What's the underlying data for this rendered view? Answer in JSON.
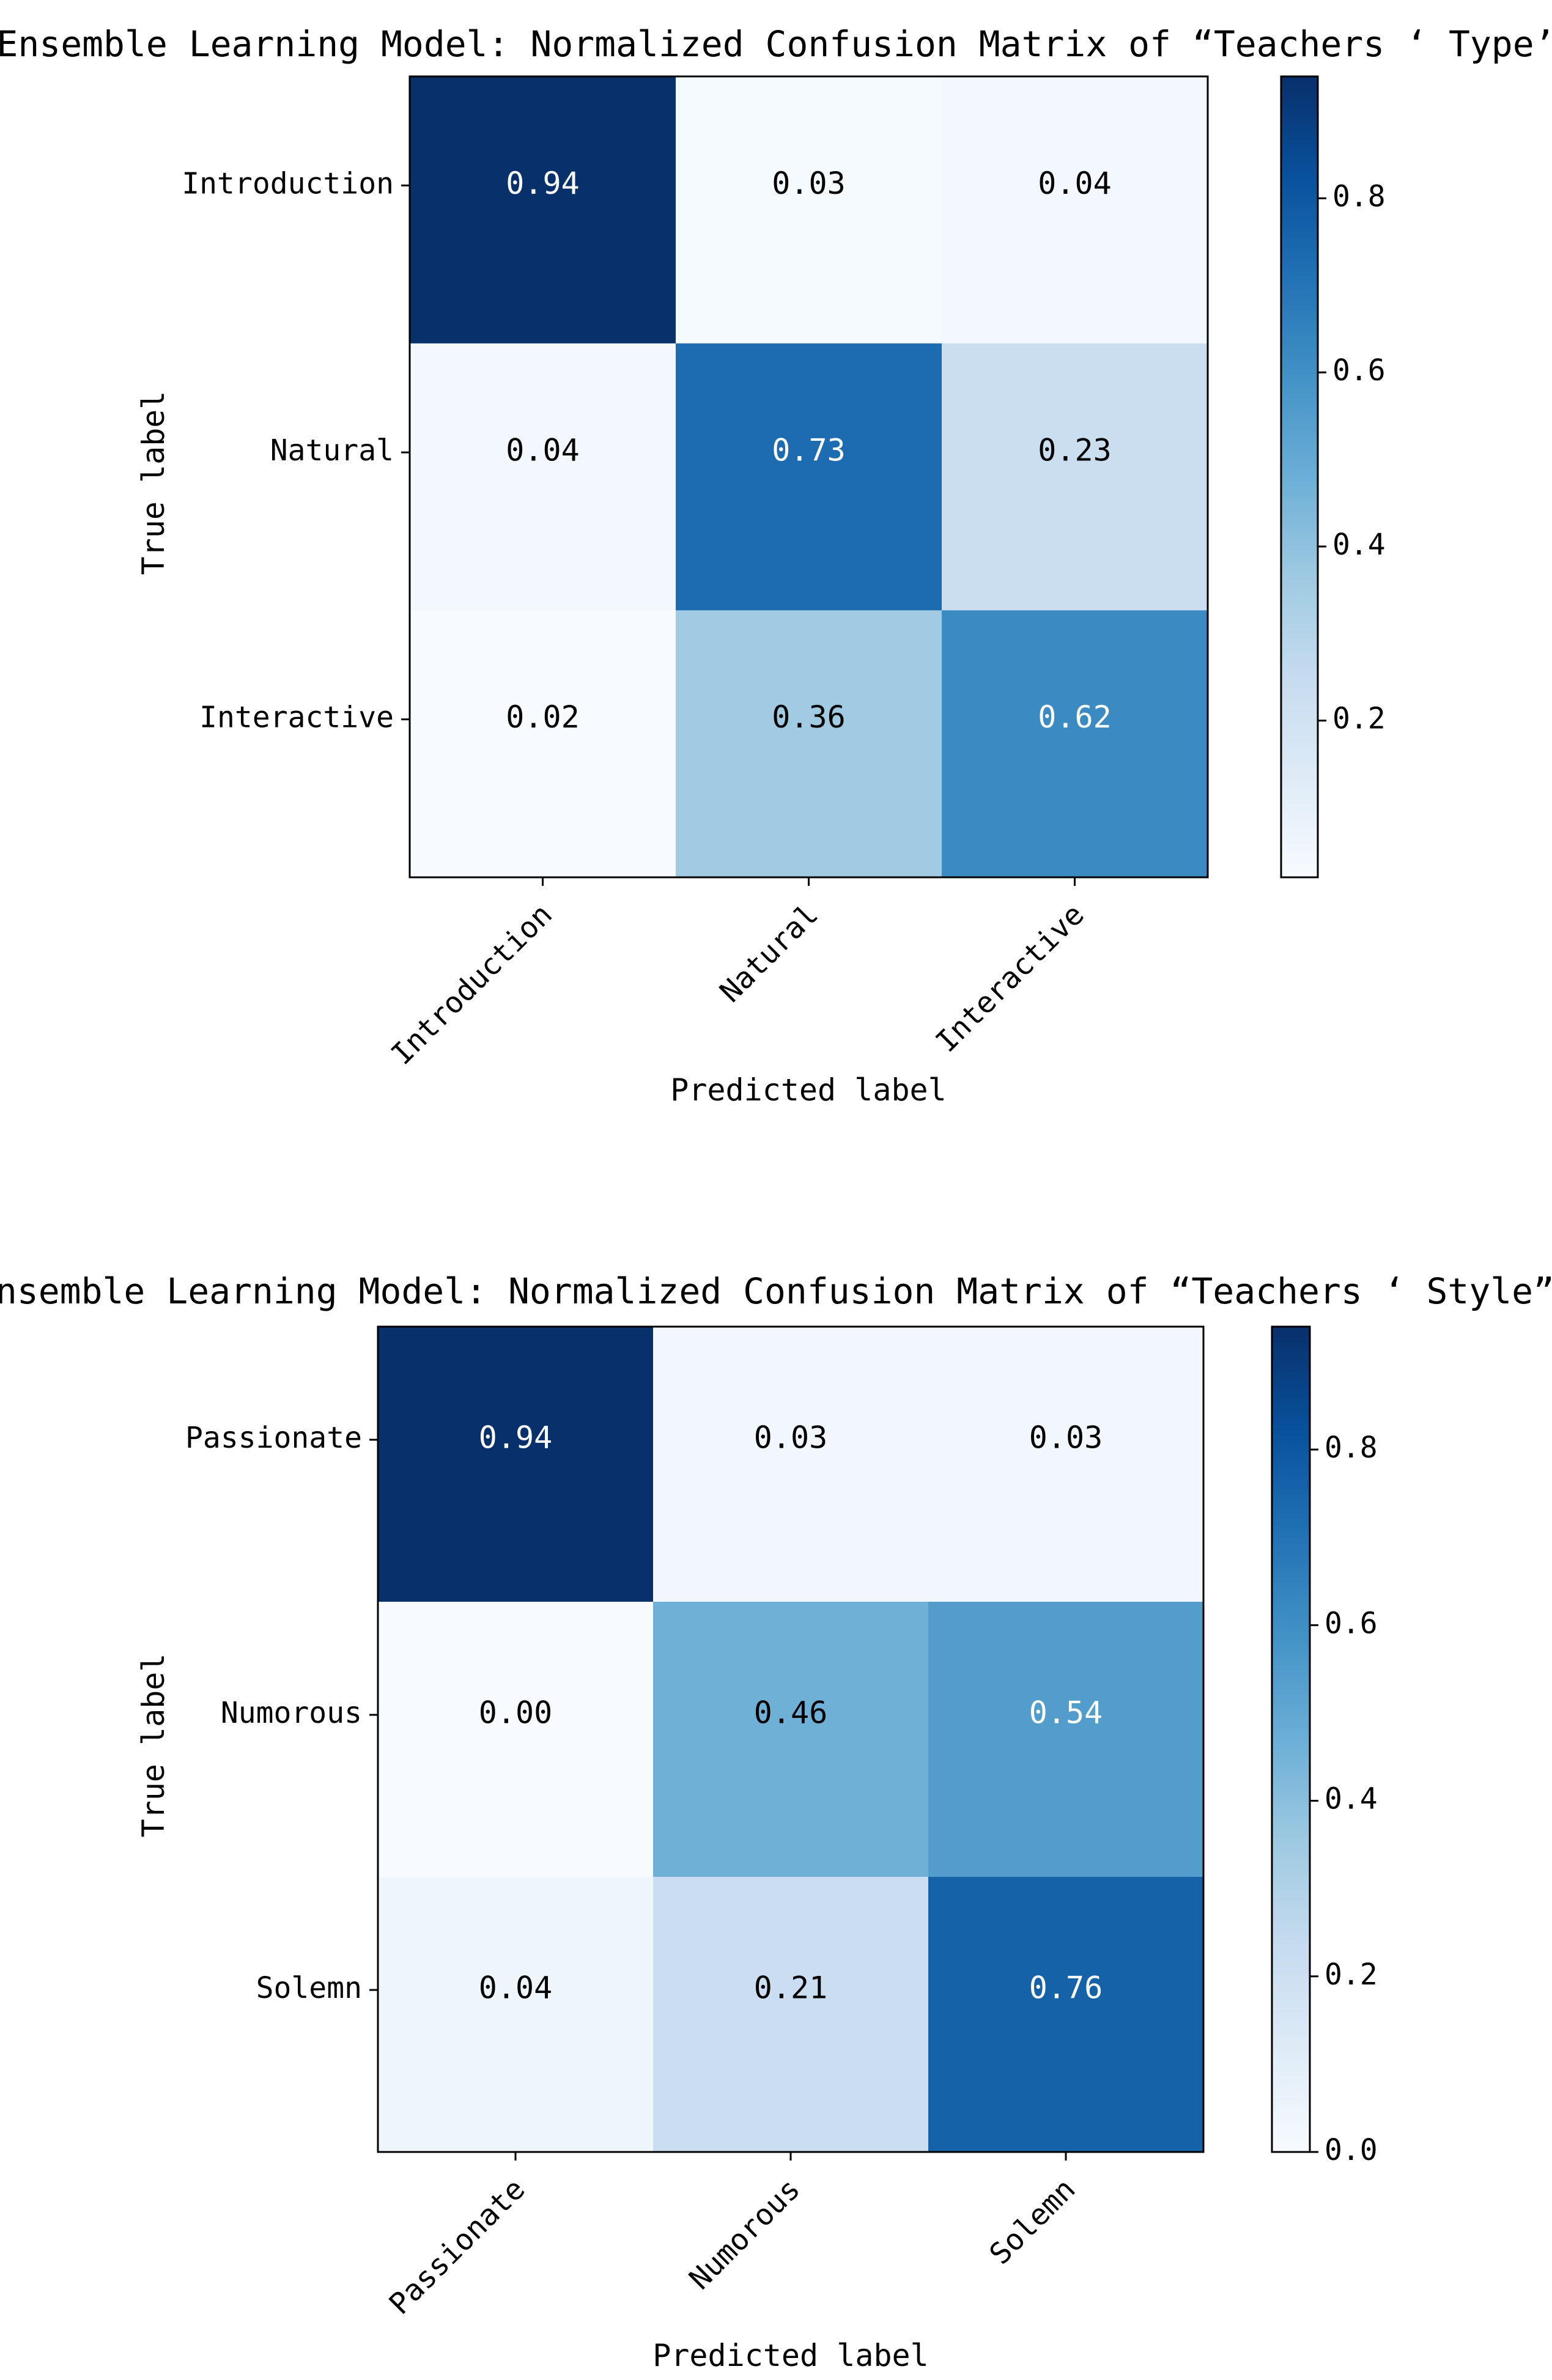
{
  "chart_data": [
    {
      "type": "heatmap",
      "title": "Ensemble Learning Model: Normalized Confusion Matrix of  “Teachers ‘ Type’",
      "xlabel": "Predicted label",
      "ylabel": "True label",
      "row_labels": [
        "Introduction",
        "Natural",
        "Interactive"
      ],
      "col_labels": [
        "Introduction",
        "Natural",
        "Interactive"
      ],
      "values": [
        [
          0.94,
          0.03,
          0.04
        ],
        [
          0.04,
          0.73,
          0.23
        ],
        [
          0.02,
          0.36,
          0.62
        ]
      ],
      "value_labels": [
        [
          "0.94",
          "0.03",
          "0.04"
        ],
        [
          "0.04",
          "0.73",
          "0.23"
        ],
        [
          "0.02",
          "0.36",
          "0.62"
        ]
      ],
      "colorbar": {
        "range": [
          0.02,
          0.94
        ],
        "ticks": [
          0.2,
          0.4,
          0.6,
          0.8
        ],
        "tick_labels": [
          "0.2",
          "0.4",
          "0.6",
          "0.8"
        ]
      },
      "colormap": "Blues"
    },
    {
      "type": "heatmap",
      "title": "Ensemble Learning Model: Normalized Confusion Matrix of  “Teachers ‘ Style”",
      "xlabel": "Predicted label",
      "ylabel": "True label",
      "row_labels": [
        "Passionate",
        "Numorous",
        "Solemn"
      ],
      "col_labels": [
        "Passionate",
        "Numorous",
        "Solemn"
      ],
      "values": [
        [
          0.94,
          0.03,
          0.03
        ],
        [
          0.0,
          0.46,
          0.54
        ],
        [
          0.04,
          0.21,
          0.76
        ]
      ],
      "value_labels": [
        [
          "0.94",
          "0.03",
          "0.03"
        ],
        [
          "0.00",
          "0.46",
          "0.54"
        ],
        [
          "0.04",
          "0.21",
          "0.76"
        ]
      ],
      "colorbar": {
        "range": [
          0.0,
          0.94
        ],
        "ticks": [
          0.0,
          0.2,
          0.4,
          0.6,
          0.8
        ],
        "tick_labels": [
          "0.0",
          "0.2",
          "0.4",
          "0.6",
          "0.8"
        ]
      },
      "colormap": "Blues"
    }
  ]
}
